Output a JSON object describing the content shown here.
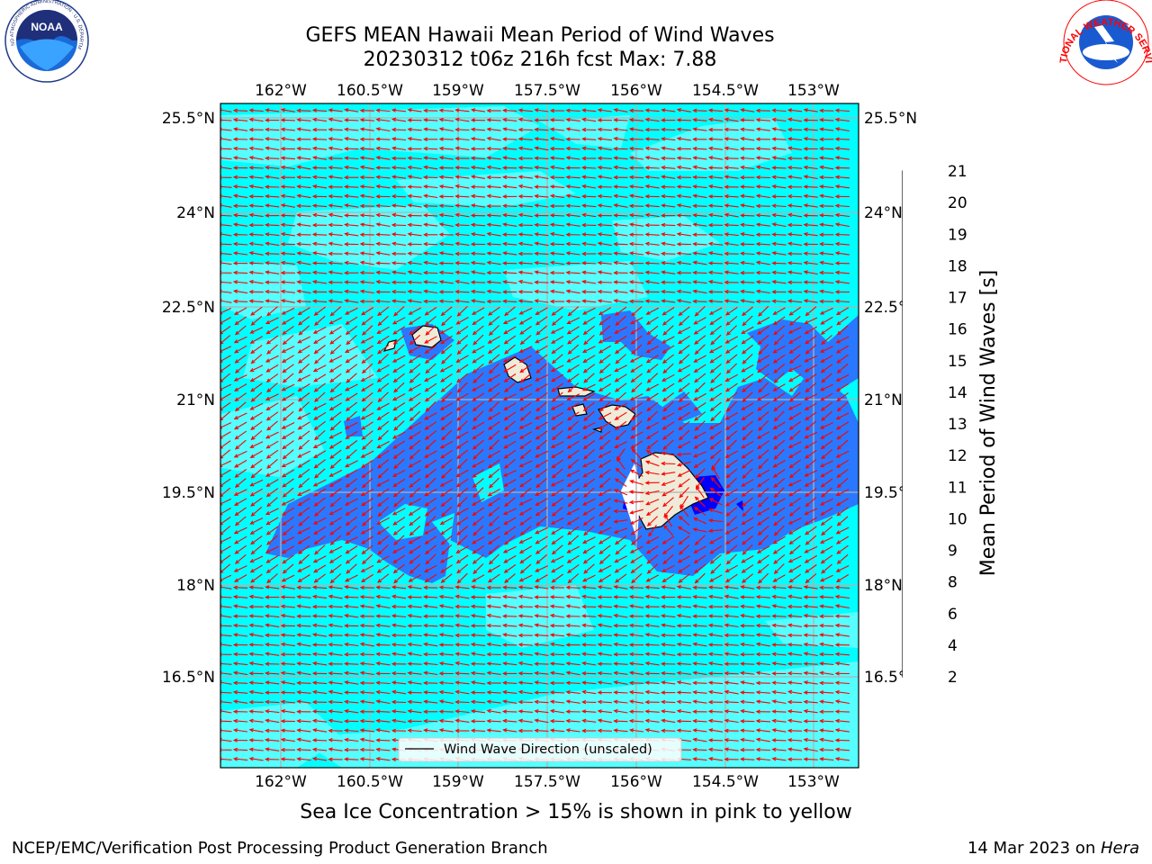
{
  "title_line1": "GEFS MEAN Hawaii Mean Period of Wind Waves",
  "title_line2": "20230312 t06z 216h fcst   Max: 7.88",
  "longitude_labels": [
    "162°W",
    "160.5°W",
    "159°W",
    "157.5°W",
    "156°W",
    "154.5°W",
    "153°W"
  ],
  "latitude_labels": [
    "25.5°N",
    "24°N",
    "22.5°N",
    "21°N",
    "19.5°N",
    "18°N",
    "16.5°N"
  ],
  "colorbar": {
    "label": "Mean Period of Wind Waves [s]",
    "ticks": [
      "2",
      "4",
      "6",
      "8",
      "9",
      "10",
      "11",
      "12",
      "13",
      "14",
      "15",
      "16",
      "17",
      "18",
      "19",
      "20",
      "21"
    ],
    "colors": [
      "#0066ff",
      "#00c8ff",
      "#00ffff",
      "#44ffff",
      "#88ffff",
      "#aaffee",
      "#4dff88",
      "#00e600",
      "#55e600",
      "#aaee00",
      "#ddf500",
      "#ffff00",
      "#ffd000",
      "#ffa500",
      "#ff8000",
      "#ff5000",
      "#ff2000",
      "#ff0000"
    ],
    "under_color": "#0000ff"
  },
  "legend_text": "Wind Wave Direction (unscaled)",
  "sea_ice_note": "Sea Ice Concentration > 15% is shown in pink to yellow",
  "footer_left": "NCEP/EMC/Verification Post Processing Product Generation Branch",
  "footer_right_prefix": "14 Mar 2023 on ",
  "footer_right_host": "Hera",
  "logos": {
    "noaa_text": "NOAA",
    "noaa_ring": "NATIONAL OCEANIC AND ATMOSPHERIC ADMINISTRATION · U.S. DEPARTMENT OF COMMERCE",
    "nws_ring": "NATIONAL WEATHER SERVICE"
  },
  "colors": {
    "ocean_base": "#00ffff",
    "ocean_light": "#55ffff",
    "ocean_blue": "#2a78ff",
    "deep_blue": "#0000ff",
    "land": "#eeebd8",
    "arrow": "#ff0000",
    "grid": "#b0b0b0"
  }
}
